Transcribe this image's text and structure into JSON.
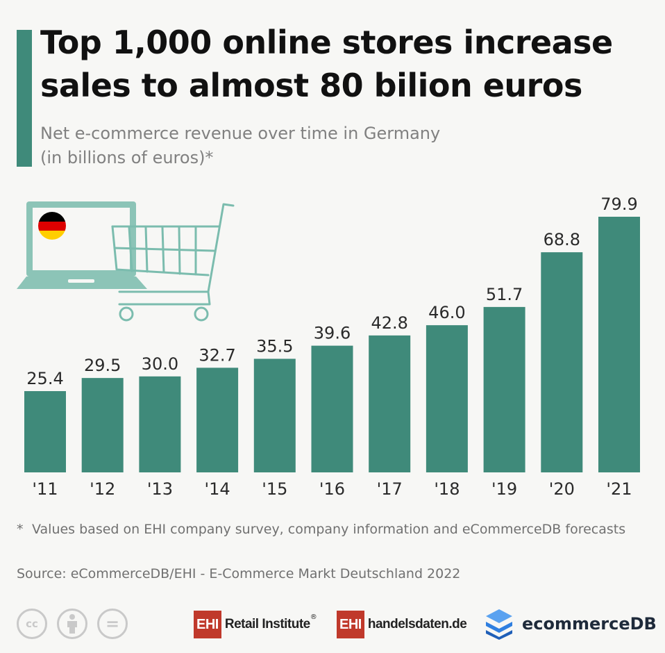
{
  "header": {
    "title_line1": "Top 1,000 online stores increase",
    "title_line2": "sales to almost 80 bilion euros",
    "subtitle_line1": "Net e-commerce revenue over time in Germany",
    "subtitle_line2": "(in billions of euros)*"
  },
  "chart_data": {
    "type": "bar",
    "categories": [
      "'11",
      "'12",
      "'13",
      "'14",
      "'15",
      "'16",
      "'17",
      "'18",
      "'19",
      "'20",
      "'21"
    ],
    "values": [
      25.4,
      29.5,
      30.0,
      32.7,
      35.5,
      39.6,
      42.8,
      46.0,
      51.7,
      68.8,
      79.9
    ],
    "value_labels": [
      "25.4",
      "29.5",
      "30.0",
      "32.7",
      "35.5",
      "39.6",
      "42.8",
      "46.0",
      "51.7",
      "68.8",
      "79.9"
    ],
    "bar_color": "#3f8a7a",
    "grid": false,
    "legend": "none"
  },
  "illustration": {
    "laptop_icon": "laptop-icon",
    "flag_icon": "germany-flag-icon",
    "cart_icon": "shopping-cart-icon",
    "flag_colors": [
      "#000000",
      "#dd0000",
      "#ffce00"
    ],
    "illustration_color": "#8cc4b7"
  },
  "footer": {
    "footnote_star": "*",
    "footnote_text": "Values based on EHI company survey, company information and eCommerceDB forecasts",
    "source": "Source:  eCommerceDB/EHI - E-Commerce Markt Deutschland 2022",
    "cc_icons": [
      "cc-icon",
      "attribution-icon",
      "no-derivatives-icon"
    ],
    "cc_label": "cc",
    "cc_equal": "=",
    "ehi_box": "EHI",
    "ehi_retail": "Retail Institute",
    "ehi_reg": "®",
    "ehi_handelsdaten": "handelsdaten.de",
    "ecommercedb": "ecommerceDB",
    "brand_red": "#c0392b",
    "brand_blue": "#2f7fe0"
  }
}
